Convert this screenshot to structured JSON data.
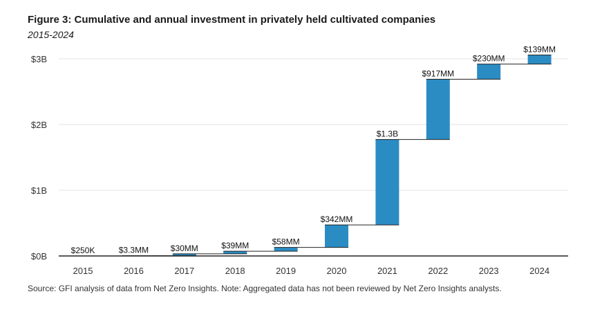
{
  "title": "Figure 3: Cumulative and annual investment in privately held cultivated companies",
  "subtitle": "2015-2024",
  "source": "Source: GFI analysis of data from Net Zero Insights. Note: Aggregated data has not been reviewed by Net Zero Insights analysts.",
  "colors": {
    "bar": "#2b8cc4",
    "connector": "#222222",
    "grid": "#e3e3e3",
    "axis": "#222222"
  },
  "chart_data": {
    "type": "bar",
    "subtype": "waterfall",
    "categories": [
      "2015",
      "2016",
      "2017",
      "2018",
      "2019",
      "2020",
      "2021",
      "2022",
      "2023",
      "2024"
    ],
    "annual_values_usd_billions": [
      0.00025,
      0.0033,
      0.03,
      0.039,
      0.058,
      0.342,
      1.3,
      0.917,
      0.23,
      0.139
    ],
    "data_labels": [
      "$250K",
      "$3.3MM",
      "$30MM",
      "$39MM",
      "$58MM",
      "$342MM",
      "$1.3B",
      "$917MM",
      "$230MM",
      "$139MM"
    ],
    "yticks": [
      0,
      1,
      2,
      3
    ],
    "ytick_labels": [
      "$0B",
      "$1B",
      "$2B",
      "$3B"
    ],
    "ylim": [
      0,
      3
    ],
    "grid": true,
    "legend": "none"
  }
}
